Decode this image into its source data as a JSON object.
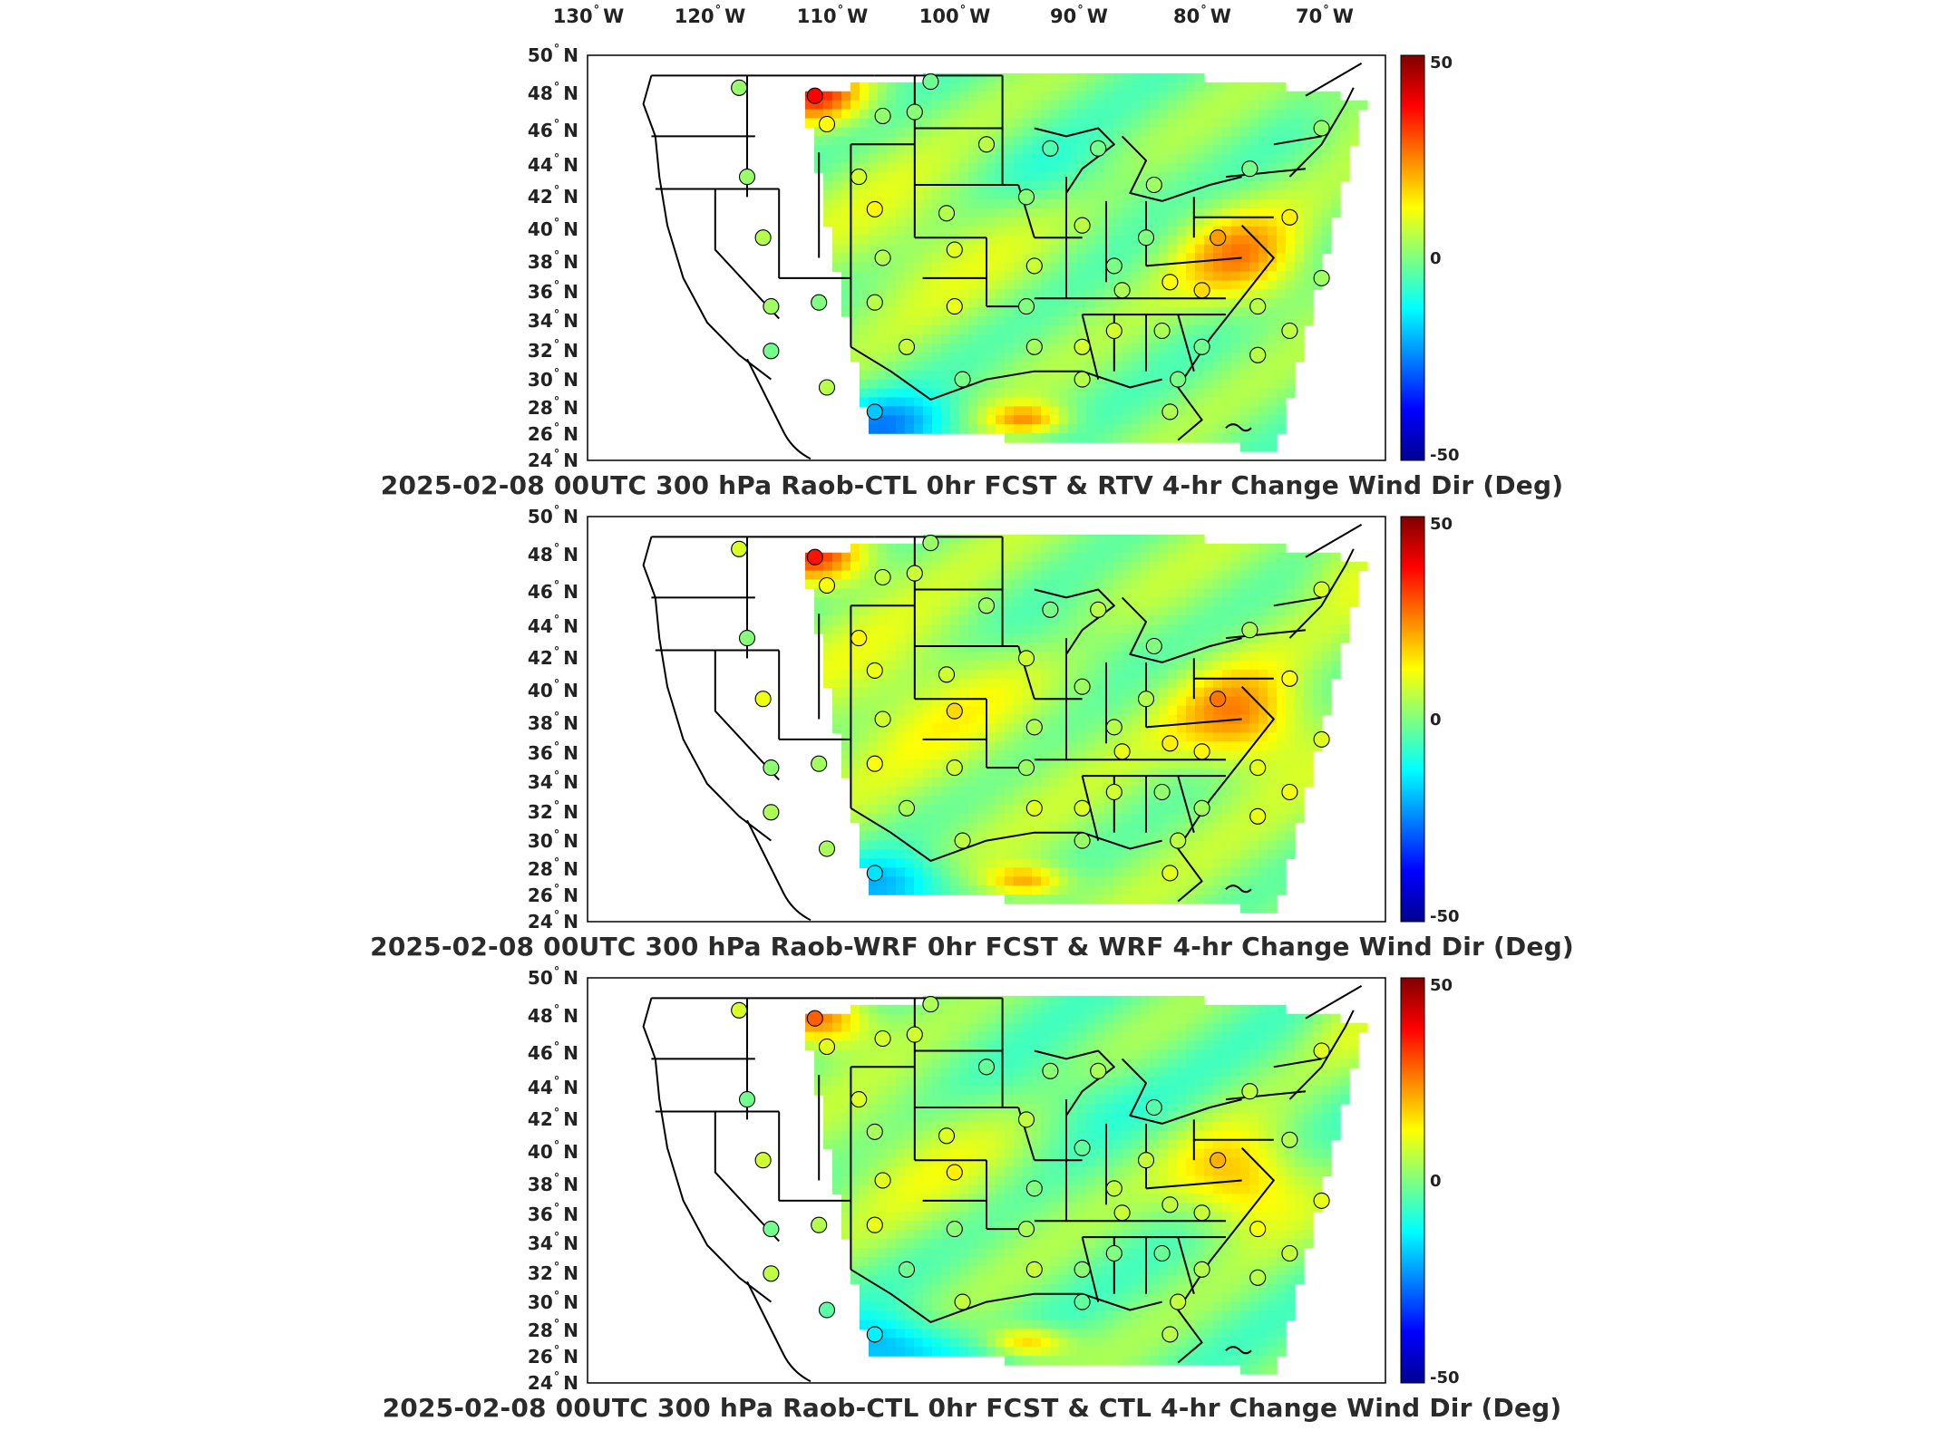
{
  "longitude_labels": [
    "130° W",
    "120° W",
    "110° W",
    "100° W",
    "90° W",
    "80° W",
    "70° W"
  ],
  "latitude_labels": [
    "50° N",
    "48° N",
    "46° N",
    "44° N",
    "42° N",
    "40° N",
    "38° N",
    "36° N",
    "34° N",
    "32° N",
    "30° N",
    "28° N",
    "26° N",
    "24° N"
  ],
  "colorbar": {
    "max_label": "50",
    "mid_label": "0",
    "min_label": "-50",
    "colors": [
      "#00008f",
      "#0000ff",
      "#0080ff",
      "#00ffff",
      "#80ff80",
      "#ffff00",
      "#ff8000",
      "#ff0000",
      "#800000"
    ]
  },
  "panels": [
    {
      "title": "2025-02-08 00UTC 300 hPa Raob-CTL 0hr FCST & RTV 4-hr Change Wind Dir (Deg)"
    },
    {
      "title": "2025-02-08 00UTC 300 hPa Raob-WRF 0hr FCST & WRF 4-hr Change Wind Dir (Deg)"
    },
    {
      "title": "2025-02-08 00UTC 300 hPa Raob-CTL 0hr FCST & CTL 4-hr Change Wind Dir (Deg)"
    }
  ]
}
